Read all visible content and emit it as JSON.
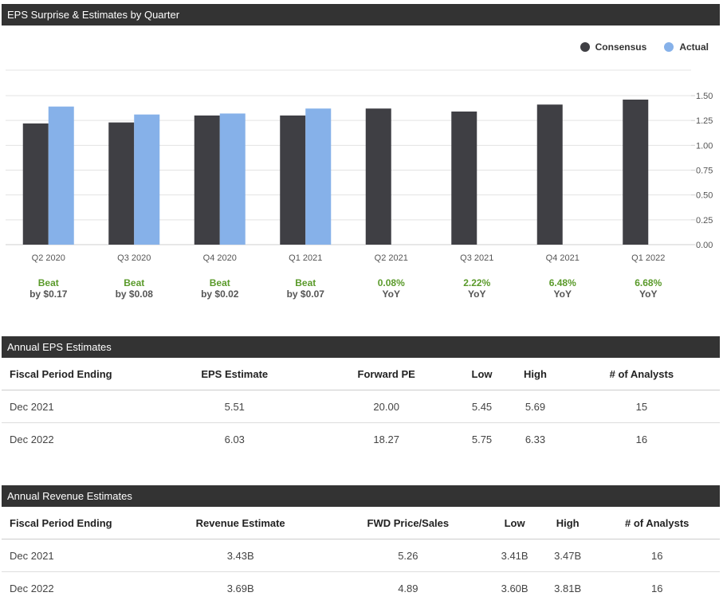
{
  "eps_section": {
    "title": "EPS Surprise & Estimates by Quarter"
  },
  "legend": [
    {
      "label": "Consensus",
      "color": "#3f3f44"
    },
    {
      "label": "Actual",
      "color": "#86b1e9"
    }
  ],
  "chart_data": {
    "type": "bar",
    "categories": [
      "Q2 2020",
      "Q3 2020",
      "Q4 2020",
      "Q1 2021",
      "Q2 2021",
      "Q3 2021",
      "Q4 2021",
      "Q1 2022"
    ],
    "series": [
      {
        "name": "Consensus",
        "color": "#3f3f44",
        "values": [
          1.22,
          1.23,
          1.3,
          1.3,
          1.37,
          1.34,
          1.41,
          1.46
        ]
      },
      {
        "name": "Actual",
        "color": "#86b1e9",
        "values": [
          1.39,
          1.31,
          1.32,
          1.37,
          null,
          null,
          null,
          null
        ]
      }
    ],
    "ylim": [
      0,
      1.5
    ],
    "yticks": [
      "0.00",
      "0.25",
      "0.50",
      "0.75",
      "1.00",
      "1.25",
      "1.50"
    ],
    "y_axis_side": "right",
    "grid": true,
    "legend_position": "top-right",
    "annotations": [
      {
        "top": "Beat",
        "bottom": "by $0.17"
      },
      {
        "top": "Beat",
        "bottom": "by $0.08"
      },
      {
        "top": "Beat",
        "bottom": "by $0.02"
      },
      {
        "top": "Beat",
        "bottom": "by $0.07"
      },
      {
        "top": "0.08%",
        "bottom": "YoY"
      },
      {
        "top": "2.22%",
        "bottom": "YoY"
      },
      {
        "top": "6.48%",
        "bottom": "YoY"
      },
      {
        "top": "6.68%",
        "bottom": "YoY"
      }
    ]
  },
  "annual_eps": {
    "title": "Annual EPS Estimates",
    "headers": [
      "Fiscal Period Ending",
      "EPS Estimate",
      "Forward PE",
      "Low",
      "High",
      "# of Analysts"
    ],
    "rows": [
      [
        "Dec 2021",
        "5.51",
        "20.00",
        "5.45",
        "5.69",
        "15"
      ],
      [
        "Dec 2022",
        "6.03",
        "18.27",
        "5.75",
        "6.33",
        "16"
      ]
    ]
  },
  "annual_revenue": {
    "title": "Annual Revenue Estimates",
    "headers": [
      "Fiscal Period Ending",
      "Revenue Estimate",
      "FWD Price/Sales",
      "Low",
      "High",
      "# of Analysts"
    ],
    "rows": [
      [
        "Dec 2021",
        "3.43B",
        "5.26",
        "3.41B",
        "3.47B",
        "16"
      ],
      [
        "Dec 2022",
        "3.69B",
        "4.89",
        "3.60B",
        "3.81B",
        "16"
      ]
    ]
  }
}
